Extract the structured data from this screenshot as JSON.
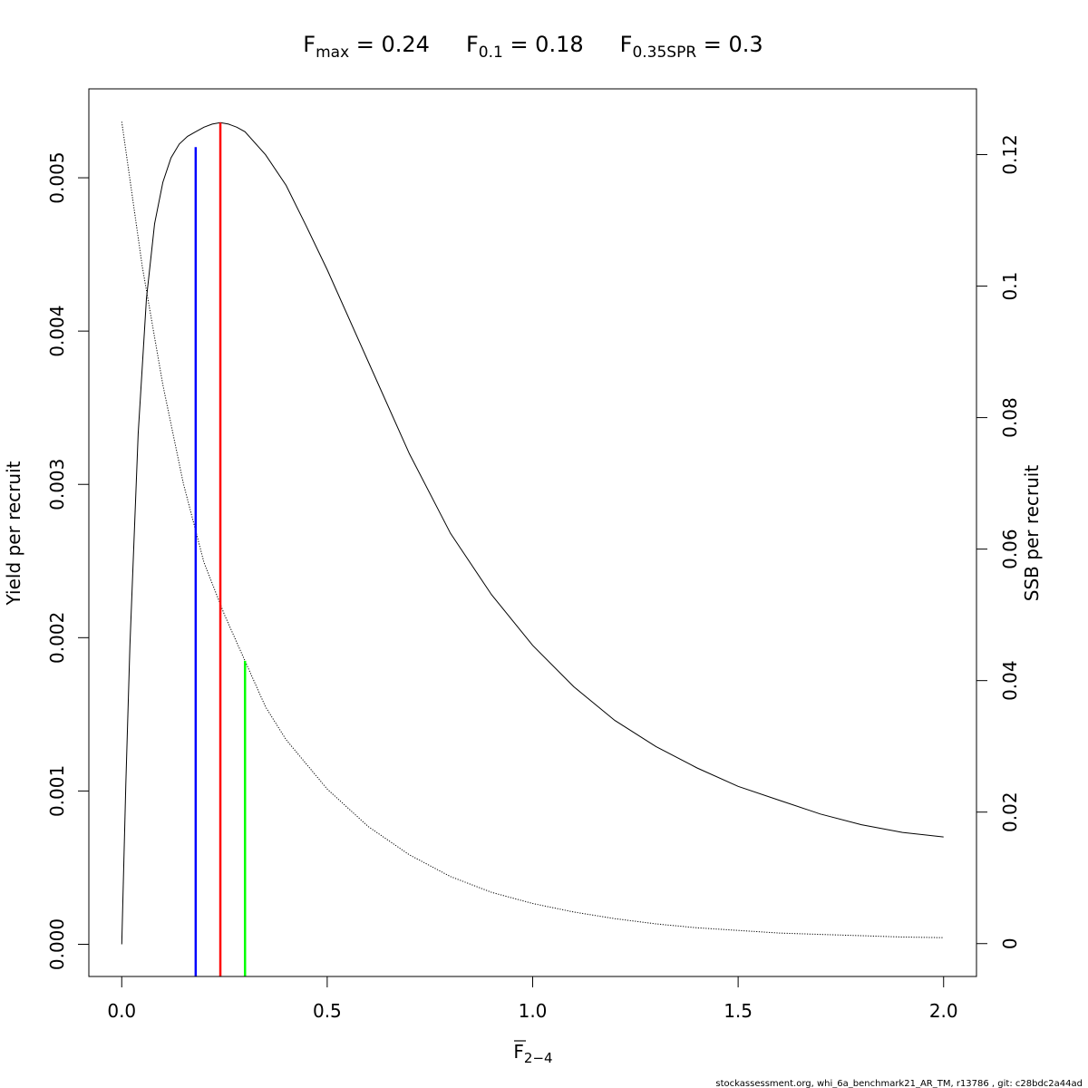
{
  "chart_data": {
    "type": "line",
    "title_parts": [
      {
        "main": "F",
        "sub": "max",
        "rest": " = 0.24"
      },
      {
        "main": "F",
        "sub": "0.1",
        "rest": " = 0.18"
      },
      {
        "main": "F",
        "sub": "0.35SPR",
        "rest": " = 0.3"
      }
    ],
    "xlabel": {
      "main": "F",
      "sub": "2−4"
    },
    "ylabel_left": "Yield per recruit",
    "ylabel_right": "SSB per recruit",
    "xlim": [
      -0.08,
      2.08
    ],
    "ylim_left": [
      -0.00021,
      0.00558
    ],
    "ylim_right": [
      -0.005,
      0.13
    ],
    "x_ticks": [
      0,
      0.5,
      1,
      1.5,
      2
    ],
    "x_tick_labels": [
      "0.0",
      "0.5",
      "1.0",
      "1.5",
      "2.0"
    ],
    "y_left_ticks": [
      0,
      0.001,
      0.002,
      0.003,
      0.004,
      0.005
    ],
    "y_left_tick_labels": [
      "0.000",
      "0.001",
      "0.002",
      "0.003",
      "0.004",
      "0.005"
    ],
    "y_right_ticks": [
      0,
      0.02,
      0.04,
      0.06,
      0.08,
      0.1,
      0.12
    ],
    "y_right_tick_labels": [
      "0",
      "0.02",
      "0.04",
      "0.06",
      "0.08",
      "0.1",
      "0.12"
    ],
    "series": [
      {
        "axis": "left",
        "style": "solid",
        "color": "#000000",
        "x": [
          0,
          0.01,
          0.02,
          0.04,
          0.06,
          0.08,
          0.1,
          0.12,
          0.14,
          0.16,
          0.18,
          0.2,
          0.22,
          0.24,
          0.26,
          0.28,
          0.3,
          0.35,
          0.4,
          0.45,
          0.5,
          0.6,
          0.7,
          0.8,
          0.9,
          1.0,
          1.1,
          1.2,
          1.3,
          1.4,
          1.5,
          1.6,
          1.7,
          1.8,
          1.9,
          2.0
        ],
        "y": [
          0,
          0.00105,
          0.00195,
          0.00333,
          0.00421,
          0.0047,
          0.00497,
          0.00513,
          0.00522,
          0.00527,
          0.0053,
          0.00533,
          0.00535,
          0.00536,
          0.00535,
          0.00533,
          0.0053,
          0.00515,
          0.00495,
          0.00468,
          0.0044,
          0.0038,
          0.0032,
          0.00268,
          0.00228,
          0.00195,
          0.00168,
          0.00146,
          0.00129,
          0.00115,
          0.00103,
          0.00094,
          0.00085,
          0.00078,
          0.00073,
          0.0007
        ]
      },
      {
        "axis": "right",
        "style": "dotted",
        "color": "#000000",
        "x": [
          0,
          0.05,
          0.1,
          0.15,
          0.2,
          0.25,
          0.3,
          0.35,
          0.4,
          0.5,
          0.6,
          0.7,
          0.8,
          0.9,
          1.0,
          1.1,
          1.2,
          1.3,
          1.4,
          1.5,
          1.6,
          1.7,
          1.8,
          1.9,
          2.0
        ],
        "y": [
          0.125,
          0.103,
          0.085,
          0.07,
          0.058,
          0.05,
          0.043,
          0.036,
          0.031,
          0.0235,
          0.0178,
          0.0135,
          0.0102,
          0.0078,
          0.0061,
          0.0048,
          0.0038,
          0.003,
          0.0024,
          0.002,
          0.0016,
          0.0014,
          0.0012,
          0.001,
          0.0009
        ]
      }
    ],
    "reference_lines": [
      {
        "x": 0.18,
        "axis": "left",
        "ytop": 0.0052,
        "color": "#0000ff"
      },
      {
        "x": 0.24,
        "axis": "left",
        "ytop": 0.00536,
        "color": "#ff0000"
      },
      {
        "x": 0.3,
        "axis": "right",
        "ytop": 0.043,
        "color": "#00ff00"
      }
    ],
    "footer": "stockassessment.org, whi_6a_benchmark21_AR_TM, r13786 , git: c28bdc2a44ad"
  }
}
